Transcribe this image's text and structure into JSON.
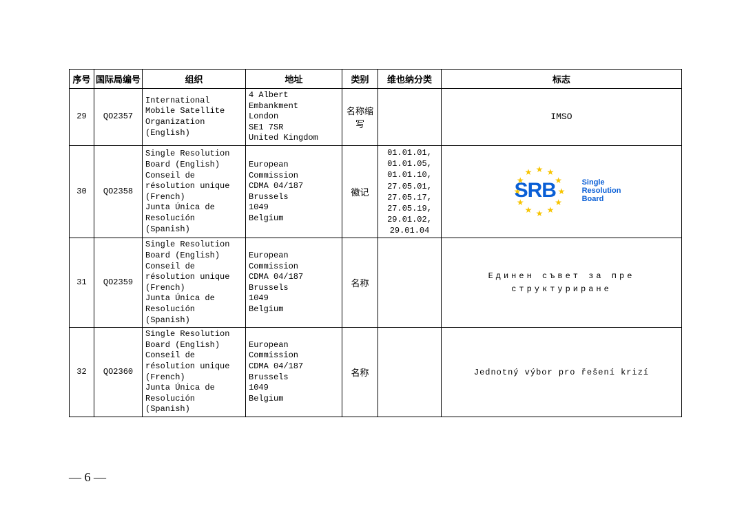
{
  "table": {
    "columns": [
      "序号",
      "国际局编号",
      "组织",
      "地址",
      "类别",
      "维也纳分类",
      "标志"
    ],
    "col_align": [
      "center",
      "center",
      "left",
      "left",
      "center",
      "center",
      "center"
    ],
    "rows": [
      {
        "seq": "29",
        "code": "QO2357",
        "org": "International Mobile Satellite Organization (English)",
        "addr": "4 Albert Embankment\nLondon\nSE1 7SR\nUnited Kingdom",
        "cat": "名称缩写",
        "vienna": "",
        "logo_type": "text_plain",
        "logo_text": "IMSO"
      },
      {
        "seq": "30",
        "code": "QO2358",
        "org": "Single Resolution Board (English)\nConseil de résolution unique (French)\nJunta Única de Resolución (Spanish)",
        "addr": "European Commission\nCDMA 04/187\nBrussels\n1049\nBelgium",
        "cat": "徽记",
        "vienna": "01.01.01,\n01.01.05,\n01.01.10,\n27.05.01,\n27.05.17,\n27.05.19,\n29.01.02,\n29.01.04",
        "logo_type": "srb",
        "logo_text": "SRB",
        "logo_side1": "Single",
        "logo_side2": "Resolution",
        "logo_side3": "Board",
        "logo_color_main": "#0a5fd6",
        "logo_color_star": "#f7c400"
      },
      {
        "seq": "31",
        "code": "QO2359",
        "org": "Single Resolution Board (English)\nConseil de résolution unique (French)\nJunta Única de Resolución (Spanish)",
        "addr": "European Commission\nCDMA 04/187\nBrussels\n1049\nBelgium",
        "cat": "名称",
        "vienna": "",
        "logo_type": "text_spaced",
        "logo_text": "Единен съвет за пре\nструктуриране"
      },
      {
        "seq": "32",
        "code": "QO2360",
        "org": "Single Resolution Board (English)\nConseil de résolution unique (French)\nJunta Única de Resolución (Spanish)",
        "addr": "European Commission\nCDMA 04/187\nBrussels\n1049\nBelgium",
        "cat": "名称",
        "vienna": "",
        "logo_type": "text_cz",
        "logo_text": "Jednotný výbor pro řešení krizí"
      }
    ]
  },
  "page_number": "— 6 —",
  "colors": {
    "border": "#000000",
    "text": "#000000",
    "background": "#ffffff"
  }
}
